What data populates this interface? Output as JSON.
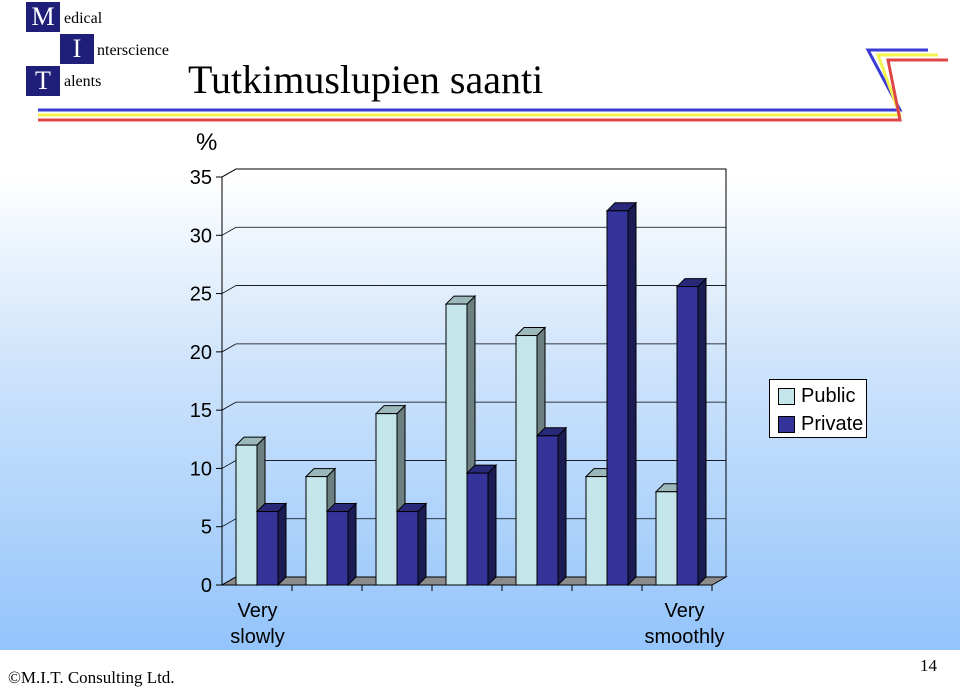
{
  "header": {
    "logo_lines": [
      {
        "letter": "M",
        "rest": "edical"
      },
      {
        "letter": "I",
        "rest": "nterscience"
      },
      {
        "letter": "T",
        "rest": "alents"
      }
    ],
    "title": "Tutkimuslupien saanti"
  },
  "footer": {
    "copyright": "©M.I.T. Consulting Ltd.",
    "page_number": "14"
  },
  "colors": {
    "public": "#c4e6ea",
    "private": "#333399",
    "stripe_blue": "#3b3bd6",
    "stripe_yellow": "#f3f34d",
    "stripe_red": "#e04545"
  },
  "chart_data": {
    "type": "bar",
    "ylabel": "%",
    "ylim": [
      0,
      35
    ],
    "yticks": [
      "0",
      "5",
      "10",
      "15",
      "20",
      "25",
      "30",
      "35"
    ],
    "categories": [
      "Very\nslowly",
      "",
      "",
      "",
      "",
      "",
      "Very\nsmoothly"
    ],
    "series": [
      {
        "name": "Public",
        "values": [
          12,
          9.3,
          14.7,
          24.1,
          21.4,
          9.3,
          8
        ]
      },
      {
        "name": "Private",
        "values": [
          6.3,
          6.3,
          6.3,
          9.6,
          12.8,
          32.1,
          25.6
        ]
      }
    ],
    "legend": "right",
    "grid": true,
    "style": "3d"
  }
}
